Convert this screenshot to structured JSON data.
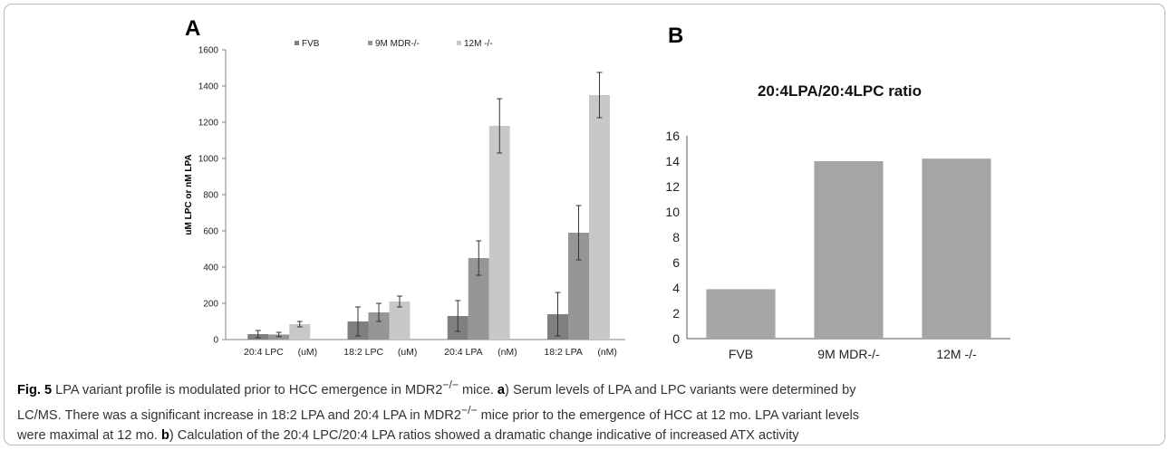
{
  "panels": {
    "a_letter": "A",
    "b_letter": "B"
  },
  "chart_data": [
    {
      "type": "bar",
      "panel": "A",
      "ylabel": "uM LPC or nM LPA",
      "ylim": [
        0,
        1600
      ],
      "yticks": [
        "0",
        "200",
        "400",
        "600",
        "800",
        "1000",
        "1200",
        "1400",
        "1600"
      ],
      "categories": [
        "20:4 LPC",
        "18:2 LPC",
        "20:4 LPA",
        "18:2 LPA"
      ],
      "category_units": [
        "(uM)",
        "(uM)",
        "(nM)",
        "(nM)"
      ],
      "legend_position": "top",
      "series": [
        {
          "name": "FVB",
          "color": "#7f7f7f",
          "values": [
            30,
            100,
            130,
            140
          ],
          "errors": [
            20,
            80,
            85,
            120
          ]
        },
        {
          "name": "9M MDR-/-",
          "color": "#969696",
          "values": [
            28,
            150,
            450,
            590
          ],
          "errors": [
            12,
            50,
            95,
            150
          ]
        },
        {
          "name": "12M -/-",
          "color": "#c8c8c8",
          "values": [
            85,
            210,
            1180,
            1350
          ],
          "errors": [
            15,
            30,
            150,
            125
          ]
        }
      ]
    },
    {
      "type": "bar",
      "panel": "B",
      "title": "20:4LPA/20:4LPC ratio",
      "ylim": [
        0,
        16
      ],
      "yticks": [
        "0",
        "2",
        "4",
        "6",
        "8",
        "10",
        "12",
        "14",
        "16"
      ],
      "categories": [
        "FVB",
        "9M MDR-/-",
        "12M -/-"
      ],
      "color": "#a5a5a5",
      "values": [
        3.9,
        14.0,
        14.2
      ]
    }
  ],
  "caption": {
    "label": "Fig. 5",
    "line1_a": " LPA variant profile is modulated prior to HCC emergence in MDR2",
    "sup": "−/−",
    "line1_b": " mice. ",
    "a_letter": "a",
    "line1_c": ") Serum levels of LPA and LPC variants were determined by",
    "line2_a": "LC/MS. There was a significant increase in 18:2 LPA and 20:4 LPA in MDR2",
    "line2_b": " mice prior to the emergence of HCC at 12 mo. LPA variant levels",
    "line3_a": "were maximal at 12 mo. ",
    "b_letter": "b",
    "line3_b": ") Calculation of the 20:4 LPC/20:4 LPA ratios showed a dramatic change indicative of increased ATX activity"
  }
}
